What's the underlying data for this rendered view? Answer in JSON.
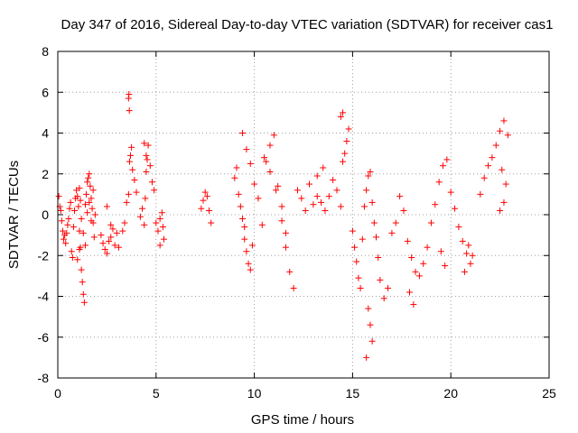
{
  "chart_data": {
    "type": "scatter",
    "title": "Day 347 of 2016, Sidereal Day-to-day VTEC variation (SDTVAR) for receiver cas1",
    "xlabel": "GPS time / hours",
    "ylabel": "SDTVAR / TECUs",
    "xlim": [
      0,
      25
    ],
    "ylim": [
      -8,
      8
    ],
    "xticks": [
      0,
      5,
      10,
      15,
      20,
      25
    ],
    "yticks": [
      -8,
      -6,
      -4,
      -2,
      0,
      2,
      4,
      6,
      8
    ],
    "grid": true,
    "marker": "+",
    "colors": {
      "points": "#ff0000",
      "grid": "#a0a0a0",
      "frame": "#000000"
    },
    "series": [
      {
        "name": "cas1",
        "description_points": "approximate samples of the plotted clusters",
        "x": [
          0.05,
          0.1,
          0.15,
          0.2,
          0.25,
          0.3,
          0.35,
          0.4,
          0.45,
          0.5,
          0.55,
          0.6,
          0.65,
          0.7,
          0.75,
          0.8,
          0.85,
          0.9,
          0.95,
          1.0,
          1.05,
          1.1,
          1.15,
          1.2,
          1.25,
          1.3,
          1.35,
          1.4,
          1.45,
          1.5,
          1.55,
          1.6,
          1.65,
          1.7,
          1.75,
          1.8,
          1.85,
          1.9,
          1.0,
          1.1,
          1.2,
          1.1,
          1.15,
          1.3,
          1.4,
          1.5,
          1.6,
          1.7,
          1.8,
          2.2,
          2.3,
          2.4,
          2.5,
          2.6,
          2.7,
          2.8,
          2.9,
          3.0,
          3.1,
          2.5,
          2.7,
          3.3,
          3.4,
          3.5,
          3.6,
          3.65,
          3.7,
          3.75,
          3.8,
          3.9,
          4.0,
          3.6,
          3.62,
          3.64,
          4.2,
          4.3,
          4.4,
          4.45,
          4.5,
          4.55,
          4.6,
          4.7,
          4.8,
          4.9,
          4.4,
          4.5,
          5.0,
          5.1,
          5.2,
          5.3,
          5.35,
          5.4,
          5.2,
          7.3,
          7.4,
          7.5,
          7.6,
          7.7,
          7.8,
          9.0,
          9.1,
          9.2,
          9.3,
          9.4,
          9.5,
          9.6,
          9.7,
          9.8,
          9.9,
          9.4,
          9.6,
          9.8,
          9.5,
          10.0,
          10.2,
          10.4,
          10.6,
          10.8,
          11.0,
          11.2,
          11.4,
          11.6,
          11.8,
          12.0,
          10.5,
          10.8,
          11.1,
          11.4,
          11.6,
          12.2,
          12.4,
          12.6,
          12.8,
          13.0,
          13.2,
          13.4,
          13.6,
          13.8,
          14.0,
          14.2,
          14.4,
          14.5,
          14.6,
          14.7,
          14.8,
          14.4,
          14.5,
          13.2,
          13.5,
          15.0,
          15.1,
          15.2,
          15.3,
          15.4,
          15.5,
          15.6,
          15.7,
          15.8,
          15.9,
          16.0,
          16.1,
          16.2,
          15.8,
          15.9,
          16.0,
          15.7,
          16.3,
          16.4,
          16.6,
          16.8,
          17.0,
          17.2,
          17.4,
          17.6,
          17.8,
          18.0,
          18.2,
          17.9,
          18.1,
          18.4,
          18.6,
          18.8,
          19.0,
          19.2,
          19.4,
          19.6,
          19.8,
          20.0,
          20.2,
          19.5,
          19.7,
          20.4,
          20.6,
          20.8,
          21.0,
          21.1,
          20.7,
          20.9,
          21.5,
          21.7,
          21.9,
          22.1,
          22.3,
          22.5,
          22.7,
          22.9,
          22.6,
          22.8,
          22.7,
          22.5
        ],
        "y": [
          0.9,
          0.4,
          0.2,
          -0.3,
          -0.8,
          -1.2,
          -1.0,
          -1.4,
          -0.9,
          -0.5,
          -0.2,
          0.3,
          0.6,
          -1.8,
          -2.1,
          -0.6,
          0.2,
          0.8,
          1.2,
          0.9,
          0.4,
          -0.8,
          -1.6,
          -2.7,
          -3.3,
          -3.9,
          -4.3,
          0.5,
          1.0,
          1.6,
          1.8,
          2.0,
          1.4,
          0.8,
          0.3,
          -0.4,
          -1.1,
          0.0,
          -2.2,
          -1.7,
          -0.2,
          1.3,
          0.7,
          -0.9,
          -1.5,
          0.1,
          0.6,
          -0.3,
          1.2,
          -1.0,
          -1.4,
          -1.7,
          -1.9,
          -1.3,
          -1.1,
          -0.7,
          -1.5,
          -0.9,
          -1.6,
          0.4,
          -0.5,
          -0.8,
          -0.4,
          0.6,
          1.0,
          2.6,
          2.9,
          3.3,
          2.2,
          1.7,
          1.1,
          5.7,
          5.9,
          5.1,
          -0.1,
          0.3,
          -0.5,
          0.8,
          2.1,
          2.7,
          3.4,
          2.4,
          1.6,
          1.2,
          3.5,
          2.9,
          -0.4,
          -0.8,
          -0.2,
          0.1,
          -0.6,
          -1.2,
          -1.5,
          0.3,
          0.7,
          1.1,
          0.9,
          0.2,
          -0.4,
          1.8,
          2.3,
          1.0,
          0.4,
          -0.2,
          -1.2,
          -1.8,
          -2.4,
          -2.7,
          -1.5,
          4.0,
          3.2,
          2.5,
          -0.6,
          1.5,
          0.8,
          -0.5,
          2.6,
          3.4,
          3.9,
          1.4,
          -0.3,
          -1.6,
          -2.8,
          -3.6,
          2.8,
          2.1,
          1.2,
          0.4,
          -0.9,
          1.2,
          0.8,
          0.2,
          1.5,
          0.5,
          0.9,
          0.6,
          0.2,
          0.9,
          1.7,
          1.2,
          0.4,
          2.6,
          3.0,
          3.6,
          4.2,
          4.8,
          5.0,
          1.9,
          2.3,
          -0.8,
          -1.6,
          -2.3,
          -3.1,
          -3.6,
          -1.2,
          0.4,
          1.2,
          1.9,
          2.1,
          0.6,
          -0.4,
          -1.1,
          -4.6,
          -5.4,
          -6.2,
          -7.0,
          -2.1,
          -3.2,
          -4.1,
          -3.6,
          -0.9,
          -0.4,
          0.9,
          0.2,
          -1.3,
          -2.1,
          -2.8,
          -3.8,
          -4.4,
          -3.0,
          -2.4,
          -1.6,
          -0.4,
          0.5,
          1.6,
          2.4,
          2.7,
          1.1,
          0.3,
          -1.8,
          -2.5,
          -0.6,
          -1.3,
          -1.9,
          -2.4,
          -2.0,
          -2.8,
          -1.5,
          1.0,
          1.8,
          2.4,
          2.8,
          3.4,
          4.1,
          4.6,
          3.9,
          2.2,
          1.5,
          0.6,
          0.2
        ]
      }
    ]
  }
}
